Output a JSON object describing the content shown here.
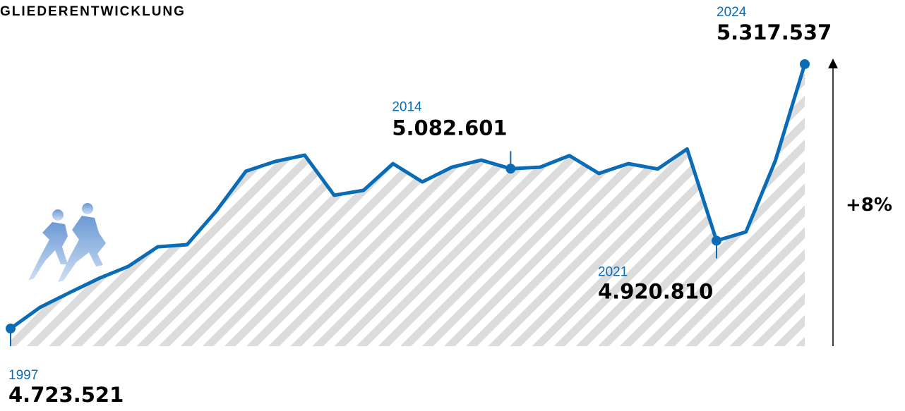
{
  "chart_data": {
    "type": "line",
    "title": "GLIEDERENTWICKLUNG",
    "x": [
      1997,
      1998,
      1999,
      2000,
      2001,
      2002,
      2003,
      2004,
      2005,
      2006,
      2007,
      2008,
      2009,
      2010,
      2011,
      2012,
      2013,
      2014,
      2015,
      2016,
      2017,
      2018,
      2019,
      2020,
      2021,
      2022,
      2023,
      2024
    ],
    "values": [
      4723521,
      4771000,
      4804000,
      4836000,
      4863000,
      4907000,
      4912000,
      4988000,
      5077000,
      5099000,
      5113000,
      5023000,
      5034000,
      5094000,
      5053000,
      5086000,
      5102000,
      5082601,
      5086000,
      5112000,
      5072000,
      5094000,
      5082000,
      5127000,
      4920810,
      4940500,
      5100500,
      5317537
    ],
    "value_labels": [
      "4.723.521",
      null,
      null,
      null,
      null,
      null,
      null,
      null,
      null,
      null,
      null,
      null,
      null,
      null,
      null,
      null,
      null,
      "5.082.601",
      null,
      null,
      null,
      null,
      null,
      null,
      "4.920.810",
      null,
      null,
      "5.317.537"
    ],
    "color": "#0a6cb7",
    "ylim": [
      4700000,
      5350000
    ],
    "xlim": [
      1997,
      2024
    ],
    "change_label": "+8%"
  }
}
